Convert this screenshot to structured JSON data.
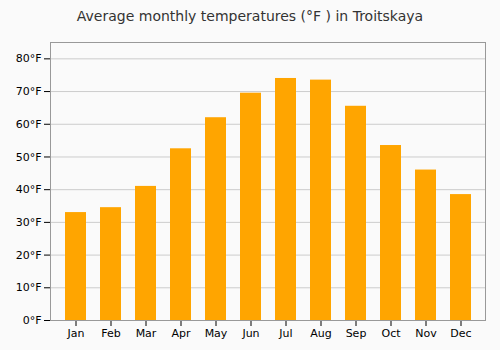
{
  "chart_data": {
    "type": "bar",
    "title": "Average monthly temperatures (°F ) in Troitskaya",
    "categories": [
      "Jan",
      "Feb",
      "Mar",
      "Apr",
      "May",
      "Jun",
      "Jul",
      "Aug",
      "Sep",
      "Oct",
      "Nov",
      "Dec"
    ],
    "values": [
      33,
      34.5,
      41,
      52.5,
      62,
      69.5,
      74,
      73.5,
      65.5,
      53.5,
      46,
      38.5
    ],
    "color": "#FFA500",
    "ylim": [
      0,
      85
    ],
    "yticks": [
      {
        "value": 0,
        "label": "0°F"
      },
      {
        "value": 10,
        "label": "10°F"
      },
      {
        "value": 20,
        "label": "20°F"
      },
      {
        "value": 30,
        "label": "30°F"
      },
      {
        "value": 40,
        "label": "40°F"
      },
      {
        "value": 50,
        "label": "50°F"
      },
      {
        "value": 60,
        "label": "60°F"
      },
      {
        "value": 70,
        "label": "70°F"
      },
      {
        "value": 80,
        "label": "80°F"
      }
    ],
    "grid": true
  }
}
